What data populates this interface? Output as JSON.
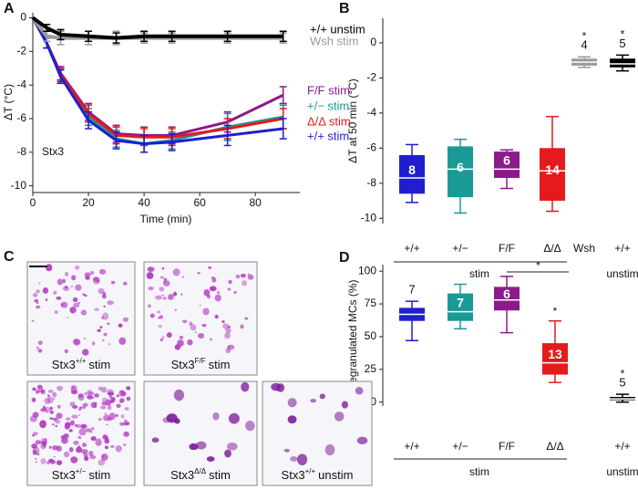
{
  "chart_data": [
    {
      "panel": "A",
      "type": "line",
      "x_label": "Time (min)",
      "y_label": "ΔT (°C)",
      "annotation": "Stx3",
      "x": [
        0,
        5,
        10,
        20,
        30,
        40,
        50,
        70,
        90
      ],
      "xlim": [
        0,
        96
      ],
      "xticks": [
        0,
        20,
        40,
        60,
        80
      ],
      "ylim": [
        -10.4,
        0.3
      ],
      "yticks": [
        0,
        -2,
        -4,
        -6,
        -8,
        -10
      ],
      "series": [
        {
          "name": "+/+ unstim",
          "color": "#000000",
          "values": [
            0,
            -0.6,
            -1.0,
            -1.1,
            -1.2,
            -1.1,
            -1.1,
            -1.1,
            -1.1
          ],
          "errors": [
            0,
            0.2,
            0.3,
            0.3,
            0.3,
            0.3,
            0.3,
            0.3,
            0.3
          ]
        },
        {
          "name": "Wsh stim",
          "color": "#9a9a9a",
          "values": [
            0,
            -1.1,
            -1.2,
            -1.2,
            -1.2,
            -1.2,
            -1.2,
            -1.2,
            -1.2
          ],
          "errors": [
            0,
            0.3,
            0.4,
            0.4,
            0.4,
            0.3,
            0.3,
            0.3,
            0.3
          ]
        },
        {
          "name": "F/F stim",
          "color": "#8b1a8b",
          "values": [
            0,
            -1.5,
            -3.3,
            -5.6,
            -6.9,
            -7.0,
            -7.0,
            -6.2,
            -4.6
          ],
          "errors": [
            0,
            0.3,
            0.4,
            0.5,
            0.5,
            0.5,
            0.5,
            0.6,
            0.5
          ]
        },
        {
          "name": "+/− stim",
          "color": "#1a9a96",
          "values": [
            0,
            -1.5,
            -3.5,
            -5.9,
            -7.2,
            -7.5,
            -7.3,
            -6.5,
            -5.9
          ],
          "errors": [
            0,
            0.3,
            0.4,
            0.5,
            0.5,
            0.5,
            0.5,
            0.8,
            0.7
          ]
        },
        {
          "name": "Δ/Δ stim",
          "color": "#e41a1c",
          "values": [
            0,
            -1.5,
            -3.4,
            -5.7,
            -7.0,
            -7.1,
            -7.1,
            -6.6,
            -6.0
          ],
          "errors": [
            0,
            0.3,
            0.4,
            0.5,
            0.5,
            0.5,
            0.5,
            0.6,
            0.6
          ]
        },
        {
          "name": "+/+ stim",
          "color": "#1f1fd0",
          "values": [
            0,
            -1.5,
            -3.5,
            -6.1,
            -7.3,
            -7.5,
            -7.4,
            -7.0,
            -6.6
          ],
          "errors": [
            0,
            0.3,
            0.4,
            0.5,
            0.5,
            0.5,
            0.5,
            0.6,
            0.6
          ]
        }
      ]
    },
    {
      "panel": "B",
      "type": "box",
      "y_label": "ΔT at 50 min (°C)",
      "categories": [
        "+/+",
        "+/−",
        "F/F",
        "Δ/Δ",
        "Wsh",
        "+/+"
      ],
      "groups": [
        "stim",
        "unstim"
      ],
      "ylim": [
        -10.3,
        1.4
      ],
      "yticks": [
        0,
        -2,
        -4,
        -6,
        -8,
        -10
      ],
      "boxes": [
        {
          "min": -9.1,
          "q1": -8.6,
          "median": -7.7,
          "q3": -6.4,
          "max": -5.8,
          "n": 8,
          "color": "#1f1fd0"
        },
        {
          "min": -9.7,
          "q1": -8.8,
          "median": -7.2,
          "q3": -5.9,
          "max": -5.5,
          "n": 6,
          "color": "#1a9a96"
        },
        {
          "min": -8.3,
          "q1": -7.7,
          "median": -7.2,
          "q3": -6.2,
          "max": -6.1,
          "n": 6,
          "color": "#8b1a8b"
        },
        {
          "min": -9.6,
          "q1": -9.0,
          "median": -7.3,
          "q3": -6.0,
          "max": -4.2,
          "n": 14,
          "color": "#e41a1c"
        },
        {
          "min": -1.4,
          "q1": -1.3,
          "median": -1.1,
          "q3": -0.9,
          "max": -0.8,
          "n": 4,
          "color": "#9a9a9a"
        },
        {
          "min": -1.6,
          "q1": -1.4,
          "median": -1.2,
          "q3": -0.9,
          "max": -0.7,
          "n": 5,
          "color": "#000000"
        }
      ],
      "significance": [
        null,
        null,
        null,
        null,
        "*",
        "*"
      ]
    },
    {
      "panel": "D",
      "type": "box",
      "y_label": "Degranulated MCs (%)",
      "categories": [
        "+/+",
        "+/−",
        "F/F",
        "Δ/Δ",
        "+/+"
      ],
      "groups": [
        "stim",
        "unstim"
      ],
      "ylim": [
        -3,
        105
      ],
      "yticks": [
        0,
        25,
        50,
        75,
        100
      ],
      "boxes": [
        {
          "min": 47,
          "q1": 62,
          "median": 67,
          "q3": 72,
          "max": 77,
          "n": 7,
          "color": "#1f1fd0"
        },
        {
          "min": 56,
          "q1": 62,
          "median": 69,
          "q3": 83,
          "max": 90,
          "n": 7,
          "color": "#1a9a96"
        },
        {
          "min": 53,
          "q1": 70,
          "median": 78,
          "q3": 88,
          "max": 96,
          "n": 6,
          "color": "#8b1a8b"
        },
        {
          "min": 15,
          "q1": 21,
          "median": 30,
          "q3": 45,
          "max": 62,
          "n": 13,
          "color": "#e41a1c"
        },
        {
          "min": 0,
          "q1": 1.5,
          "median": 2.5,
          "q3": 4,
          "max": 6,
          "n": 5,
          "color": "#000000"
        }
      ],
      "significance": [
        null,
        null,
        null,
        "*",
        "*"
      ],
      "comparison_label": "*"
    }
  ],
  "panel_c": {
    "panel": "C",
    "images": [
      {
        "name": "Stx3",
        "genotype": "+/+",
        "condition": "stim"
      },
      {
        "name": "Stx3",
        "genotype": "F/F",
        "condition": "stim"
      },
      {
        "name": "Stx3",
        "genotype": "+/−",
        "condition": "stim"
      },
      {
        "name": "Stx3",
        "genotype": "Δ/Δ",
        "condition": "stim"
      },
      {
        "name": "Stx3",
        "genotype": "+/+",
        "condition": "unstim"
      }
    ]
  }
}
